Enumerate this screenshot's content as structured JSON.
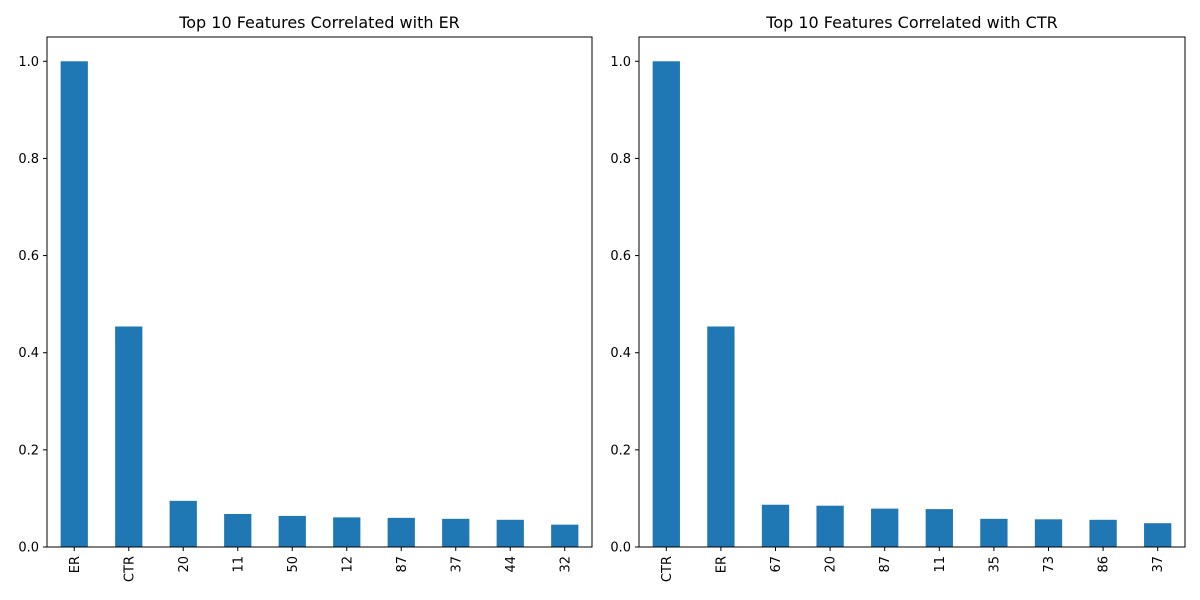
{
  "colors": {
    "bar": "#1f77b4",
    "background": "#ffffff",
    "axis": "#000000"
  },
  "chart_data": [
    {
      "type": "bar",
      "title": "Top 10 Features Correlated with ER",
      "xlabel": "",
      "ylabel": "",
      "categories": [
        "ER",
        "CTR",
        "20",
        "11",
        "50",
        "12",
        "87",
        "37",
        "44",
        "32"
      ],
      "values": [
        1.0,
        0.454,
        0.095,
        0.068,
        0.064,
        0.061,
        0.06,
        0.058,
        0.056,
        0.046
      ],
      "ylim": [
        0,
        1.05
      ],
      "yticks": [
        "0.0",
        "0.2",
        "0.4",
        "0.6",
        "0.8",
        "1.0"
      ],
      "grid": false,
      "legend": "none"
    },
    {
      "type": "bar",
      "title": "Top 10 Features Correlated with CTR",
      "xlabel": "",
      "ylabel": "",
      "categories": [
        "CTR",
        "ER",
        "67",
        "20",
        "87",
        "11",
        "35",
        "73",
        "86",
        "37"
      ],
      "values": [
        1.0,
        0.454,
        0.087,
        0.085,
        0.079,
        0.078,
        0.058,
        0.057,
        0.056,
        0.049
      ],
      "ylim": [
        0,
        1.05
      ],
      "yticks": [
        "0.0",
        "0.2",
        "0.4",
        "0.6",
        "0.8",
        "1.0"
      ],
      "grid": false,
      "legend": "none"
    }
  ]
}
